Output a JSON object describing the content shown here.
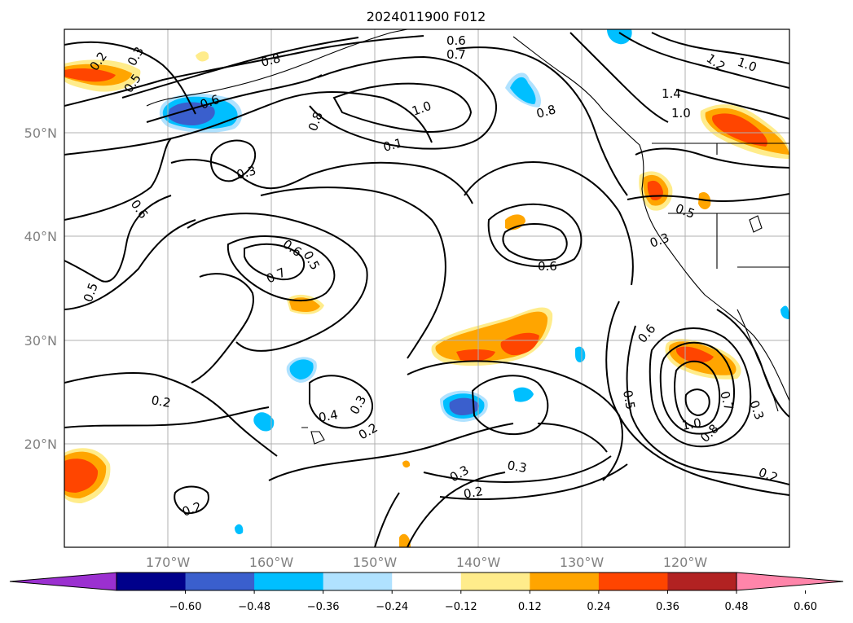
{
  "title": "2024011900 F012",
  "map": {
    "region": "North-East Pacific",
    "lat_labels": [
      "50°N",
      "40°N",
      "30°N",
      "20°N"
    ],
    "lon_labels": [
      "170°W",
      "160°W",
      "150°W",
      "140°W",
      "130°W",
      "120°W"
    ],
    "gridlines": true
  },
  "contour_labels": [
    {
      "id": "c1",
      "text": "0.2"
    },
    {
      "id": "c2",
      "text": "0.3"
    },
    {
      "id": "c3",
      "text": "0.5"
    },
    {
      "id": "c4",
      "text": "0.6"
    },
    {
      "id": "c5",
      "text": "0.8"
    },
    {
      "id": "c6",
      "text": "0.6"
    },
    {
      "id": "c7",
      "text": "0.7"
    },
    {
      "id": "c8",
      "text": "0.8"
    },
    {
      "id": "c9",
      "text": "1.0"
    },
    {
      "id": "c10",
      "text": "0.1"
    },
    {
      "id": "c11",
      "text": "0.8"
    },
    {
      "id": "c12",
      "text": "1.2"
    },
    {
      "id": "c13",
      "text": "1.0"
    },
    {
      "id": "c14",
      "text": "1.4"
    },
    {
      "id": "c15",
      "text": "1.0"
    },
    {
      "id": "c16",
      "text": "0.3"
    },
    {
      "id": "c17",
      "text": "0.6"
    },
    {
      "id": "c18",
      "text": "0.6"
    },
    {
      "id": "c19",
      "text": "0.5"
    },
    {
      "id": "c20",
      "text": "0.7"
    },
    {
      "id": "c21",
      "text": "0.5"
    },
    {
      "id": "c22",
      "text": "0.6"
    },
    {
      "id": "c23",
      "text": "0.5"
    },
    {
      "id": "c24",
      "text": "0.3"
    },
    {
      "id": "c25",
      "text": "0.6"
    },
    {
      "id": "c26",
      "text": "0.5"
    },
    {
      "id": "c27",
      "text": "0.7"
    },
    {
      "id": "c28",
      "text": "1.0"
    },
    {
      "id": "c29",
      "text": "0.8"
    },
    {
      "id": "c30",
      "text": "0.3"
    },
    {
      "id": "c31",
      "text": "0.2"
    },
    {
      "id": "c32",
      "text": "0.2"
    },
    {
      "id": "c33",
      "text": "0.4"
    },
    {
      "id": "c34",
      "text": "0.3"
    },
    {
      "id": "c35",
      "text": "0.2"
    },
    {
      "id": "c36",
      "text": "0.3"
    },
    {
      "id": "c37",
      "text": "0.3"
    },
    {
      "id": "c38",
      "text": "0.2"
    },
    {
      "id": "c39",
      "text": "0.2"
    }
  ],
  "colorbar": {
    "ticks": [
      "−0.60",
      "−0.48",
      "−0.36",
      "−0.24",
      "−0.12",
      "0.12",
      "0.24",
      "0.36",
      "0.48",
      "0.60"
    ],
    "colors": {
      "under": "#9b30d0",
      "bins": [
        "#00008b",
        "#3a5fcd",
        "#00bfff",
        "#b0e2ff",
        "#ffffff",
        "#ffec8b",
        "#ffa500",
        "#ff4500",
        "#b22222"
      ],
      "over": "#ff85aa"
    }
  }
}
